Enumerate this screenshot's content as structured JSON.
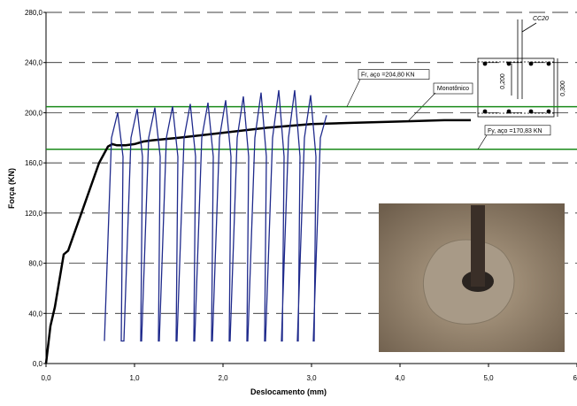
{
  "chart_data": {
    "type": "line",
    "xlabel": "Deslocamento (mm)",
    "ylabel": "Força (KN)",
    "xlim": [
      0,
      6
    ],
    "ylim": [
      0,
      280
    ],
    "xticks": [
      {
        "value": 0,
        "label": "0,0"
      },
      {
        "value": 1,
        "label": "1,0"
      },
      {
        "value": 2,
        "label": "2,0"
      },
      {
        "value": 3,
        "label": "3,0"
      },
      {
        "value": 4,
        "label": "4,0"
      },
      {
        "value": 5,
        "label": "5,0"
      },
      6
    ],
    "yticks": [
      {
        "value": 0,
        "label": "0,0"
      },
      {
        "value": 40,
        "label": "40,0"
      },
      {
        "value": 80,
        "label": "80,0"
      },
      {
        "value": 120,
        "label": "120,0"
      },
      {
        "value": 160,
        "label": "160,0"
      },
      {
        "value": 200,
        "label": "200,0"
      },
      {
        "value": 240,
        "label": "240,0"
      },
      {
        "value": 280,
        "label": "280,0"
      }
    ],
    "grid": true,
    "series": [
      {
        "name": "Monotônico",
        "color": "#000000",
        "x": [
          0,
          0.05,
          0.1,
          0.2,
          0.25,
          0.3,
          0.4,
          0.5,
          0.6,
          0.7,
          0.75,
          0.8,
          0.9,
          1.0,
          1.1,
          1.2,
          1.5,
          2.0,
          2.5,
          3.0,
          3.5,
          4.0,
          4.5,
          4.8
        ],
        "values": [
          0,
          30,
          45,
          87,
          90,
          100,
          120,
          140,
          160,
          173,
          175,
          174,
          174,
          175,
          177,
          178,
          180,
          184,
          188,
          191,
          192,
          193,
          194,
          194
        ]
      },
      {
        "color": "#1f2a8c",
        "x": [
          0.66,
          0.74,
          0.81,
          0.87,
          0.85,
          0.88,
          0.96,
          1.03,
          1.09,
          1.07,
          1.08,
          1.16,
          1.23,
          1.29,
          1.27,
          1.28,
          1.36,
          1.43,
          1.49,
          1.47,
          1.48,
          1.56,
          1.63,
          1.69,
          1.67,
          1.68,
          1.76,
          1.83,
          1.89,
          1.87,
          1.88,
          1.96,
          2.03,
          2.09,
          2.07,
          2.08,
          2.16,
          2.23,
          2.29,
          2.27,
          2.28,
          2.36,
          2.43,
          2.49,
          2.47,
          2.48,
          2.56,
          2.63,
          2.69,
          2.67,
          2.66,
          2.74,
          2.81,
          2.87,
          2.85,
          2.84,
          2.92,
          2.99,
          3.05,
          3.03,
          3.02,
          3.1,
          3.17
        ],
        "values": [
          18,
          180,
          200,
          165,
          18,
          18,
          180,
          203,
          165,
          18,
          18,
          180,
          204,
          165,
          18,
          18,
          180,
          205,
          165,
          18,
          18,
          180,
          207,
          165,
          18,
          18,
          180,
          208,
          165,
          18,
          18,
          180,
          210,
          165,
          18,
          18,
          180,
          213,
          165,
          18,
          18,
          180,
          216,
          165,
          18,
          18,
          180,
          218,
          165,
          18,
          18,
          180,
          218,
          165,
          18,
          18,
          180,
          214,
          165,
          18,
          18,
          180,
          198
        ]
      }
    ],
    "hlines": [
      {
        "value": 204.8,
        "color": "#1a8a1a",
        "label": "Fr, aço =204,80 KN"
      },
      {
        "value": 170.83,
        "color": "#1a8a1a",
        "label": "Fy, aço =170,83 KN"
      }
    ],
    "annotations": {
      "series_label": "Monotônico",
      "bar": "CC20",
      "dim_inner": "0,200",
      "dim_outer": "0,300"
    }
  }
}
